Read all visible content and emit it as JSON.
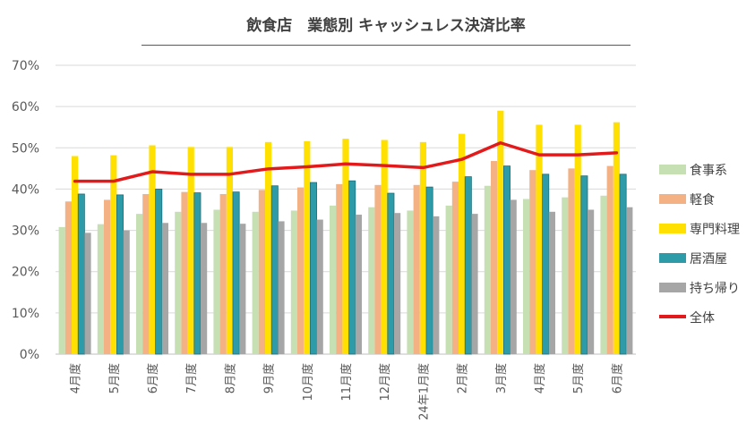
{
  "chart_data": {
    "type": "bar",
    "title": "飲食店　業態別 キャッシュレス決済比率",
    "categories": [
      "4月度",
      "5月度",
      "6月度",
      "7月度",
      "8月度",
      "9月度",
      "10月度",
      "11月度",
      "12月度",
      "24年1月度",
      "2月度",
      "3月度",
      "4月度",
      "5月度",
      "6月度"
    ],
    "y_ticks": [
      "0%",
      "10%",
      "20%",
      "30%",
      "40%",
      "50%",
      "60%",
      "70%"
    ],
    "ylim": [
      0,
      70
    ],
    "grid": true,
    "legend_position": "right",
    "series": [
      {
        "name": "食事系",
        "kind": "bar",
        "color": "#c6e0b4",
        "values": [
          30.8,
          31.5,
          34.0,
          34.5,
          35.0,
          34.5,
          34.8,
          36.0,
          35.6,
          34.8,
          36.0,
          40.8,
          37.6,
          38.0,
          38.4
        ]
      },
      {
        "name": "軽食",
        "kind": "bar",
        "color": "#f4b183",
        "values": [
          37.0,
          37.4,
          38.8,
          39.3,
          38.8,
          39.8,
          40.4,
          41.2,
          41.0,
          41.0,
          41.8,
          46.8,
          44.6,
          45.0,
          45.6
        ]
      },
      {
        "name": "専門料理",
        "kind": "bar",
        "color": "#ffe000",
        "values": [
          48.0,
          48.2,
          50.6,
          50.2,
          50.2,
          51.4,
          51.6,
          52.2,
          51.9,
          51.4,
          53.4,
          59.0,
          55.6,
          55.6,
          56.2
        ]
      },
      {
        "name": "居酒屋",
        "kind": "bar",
        "color": "#2e9ba8",
        "values": [
          38.8,
          38.6,
          40.0,
          39.1,
          39.3,
          40.8,
          41.6,
          42.0,
          39.0,
          40.5,
          43.0,
          45.6,
          43.6,
          43.2,
          43.6
        ]
      },
      {
        "name": "持ち帰り",
        "kind": "bar",
        "color": "#a6a6a6",
        "values": [
          29.4,
          30.0,
          31.8,
          31.8,
          31.6,
          32.2,
          32.6,
          33.8,
          34.2,
          33.4,
          34.0,
          37.4,
          34.5,
          35.0,
          35.6
        ]
      },
      {
        "name": "全体",
        "kind": "line",
        "color": "#e31a1c",
        "values": [
          41.9,
          41.9,
          44.2,
          43.6,
          43.6,
          44.9,
          45.4,
          46.1,
          45.7,
          45.2,
          47.2,
          51.2,
          48.3,
          48.3,
          48.8
        ]
      }
    ]
  }
}
